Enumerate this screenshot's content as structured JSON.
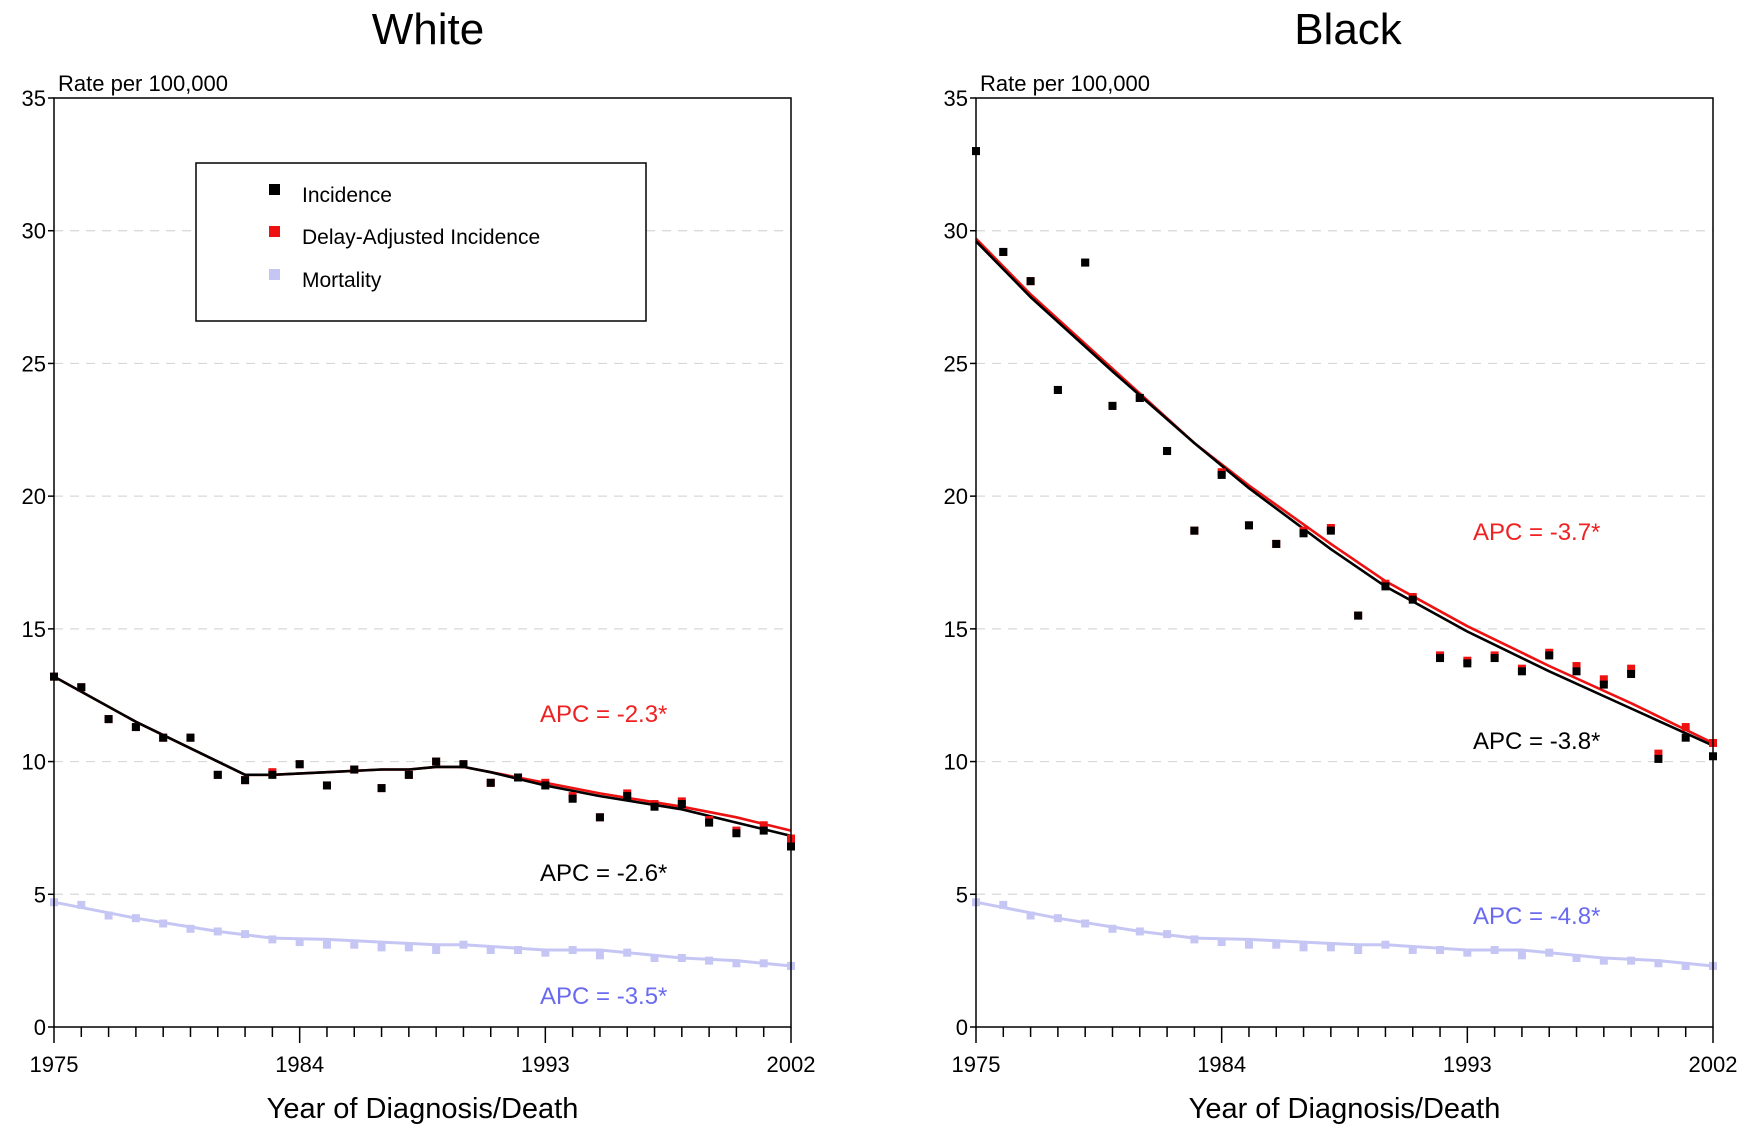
{
  "chart_data": [
    {
      "type": "scatter",
      "title": "White",
      "xlabel": "Year of Diagnosis/Death",
      "ylabel": "Rate per 100,000",
      "xlim": [
        1975,
        2002
      ],
      "ylim": [
        0,
        35
      ],
      "xticks": [
        1975,
        1984,
        1993,
        2002
      ],
      "yticks": [
        0,
        5,
        10,
        15,
        20,
        25,
        30,
        35
      ],
      "grid": "horizontal dashed",
      "legend": {
        "position": "top-center",
        "entries": [
          "Incidence",
          "Delay-Adjusted Incidence",
          "Mortality"
        ]
      },
      "x": [
        1975,
        1976,
        1977,
        1978,
        1979,
        1980,
        1981,
        1982,
        1983,
        1984,
        1985,
        1986,
        1987,
        1988,
        1989,
        1990,
        1991,
        1992,
        1993,
        1994,
        1995,
        1996,
        1997,
        1998,
        1999,
        2000,
        2001,
        2002
      ],
      "series": [
        {
          "name": "Incidence",
          "color": "#000000",
          "points": [
            13.2,
            12.8,
            11.6,
            11.3,
            10.9,
            10.9,
            9.5,
            9.3,
            9.5,
            9.9,
            9.1,
            9.7,
            9.0,
            9.5,
            10.0,
            9.9,
            9.2,
            9.4,
            9.1,
            8.6,
            7.9,
            8.7,
            8.3,
            8.4,
            7.7,
            7.3,
            7.4,
            6.8
          ],
          "trend": [
            [
              1975,
              13.2
            ],
            [
              1978,
              11.5
            ],
            [
              1981,
              10.0
            ],
            [
              1982,
              9.5
            ],
            [
              1983,
              9.5
            ],
            [
              1985,
              9.6
            ],
            [
              1987,
              9.7
            ],
            [
              1988,
              9.7
            ],
            [
              1989,
              9.8
            ],
            [
              1990,
              9.8
            ],
            [
              1991,
              9.6
            ],
            [
              1993,
              9.1
            ],
            [
              1995,
              8.7
            ],
            [
              1998,
              8.2
            ],
            [
              2000,
              7.7
            ],
            [
              2002,
              7.2
            ]
          ],
          "apc_label": "APC = -2.6*"
        },
        {
          "name": "Delay-Adjusted Incidence",
          "color": "#ee1111",
          "points": [
            13.2,
            12.8,
            11.6,
            11.3,
            10.9,
            10.9,
            9.5,
            9.3,
            9.6,
            9.9,
            9.1,
            9.7,
            9.0,
            9.5,
            10.0,
            9.9,
            9.2,
            9.4,
            9.2,
            8.7,
            7.9,
            8.8,
            8.4,
            8.5,
            7.8,
            7.4,
            7.6,
            7.1
          ],
          "trend": [
            [
              1975,
              13.2
            ],
            [
              1978,
              11.5
            ],
            [
              1980,
              10.5
            ],
            [
              1982,
              9.5
            ],
            [
              1983,
              9.5
            ],
            [
              1985,
              9.6
            ],
            [
              1987,
              9.7
            ],
            [
              1988,
              9.7
            ],
            [
              1989,
              9.8
            ],
            [
              1990,
              9.8
            ],
            [
              1991,
              9.6
            ],
            [
              1993,
              9.2
            ],
            [
              1995,
              8.8
            ],
            [
              1998,
              8.3
            ],
            [
              2000,
              7.9
            ],
            [
              2002,
              7.4
            ]
          ],
          "apc_label": "APC = -2.3*"
        },
        {
          "name": "Mortality",
          "color": "#c6c6f5",
          "points": [
            4.7,
            4.6,
            4.2,
            4.1,
            3.9,
            3.7,
            3.6,
            3.5,
            3.3,
            3.2,
            3.1,
            3.1,
            3.0,
            3.0,
            2.9,
            3.1,
            2.9,
            2.9,
            2.8,
            2.9,
            2.7,
            2.8,
            2.6,
            2.6,
            2.5,
            2.4,
            2.4,
            2.3
          ],
          "trend": [
            [
              1975,
              4.7
            ],
            [
              1978,
              4.1
            ],
            [
              1981,
              3.6
            ],
            [
              1983,
              3.35
            ],
            [
              1985,
              3.3
            ],
            [
              1987,
              3.2
            ],
            [
              1989,
              3.1
            ],
            [
              1990,
              3.1
            ],
            [
              1993,
              2.9
            ],
            [
              1995,
              2.9
            ],
            [
              1998,
              2.6
            ],
            [
              2000,
              2.5
            ],
            [
              2002,
              2.3
            ]
          ],
          "apc_label": "APC = -3.5*"
        }
      ]
    },
    {
      "type": "scatter",
      "title": "Black",
      "xlabel": "Year of Diagnosis/Death",
      "ylabel": "Rate per 100,000",
      "xlim": [
        1975,
        2002
      ],
      "ylim": [
        0,
        35
      ],
      "xticks": [
        1975,
        1984,
        1993,
        2002
      ],
      "yticks": [
        0,
        5,
        10,
        15,
        20,
        25,
        30,
        35
      ],
      "grid": "horizontal dashed",
      "x": [
        1975,
        1976,
        1977,
        1978,
        1979,
        1980,
        1981,
        1982,
        1983,
        1984,
        1985,
        1986,
        1987,
        1988,
        1989,
        1990,
        1991,
        1992,
        1993,
        1994,
        1995,
        1996,
        1997,
        1998,
        1999,
        2000,
        2001,
        2002
      ],
      "series": [
        {
          "name": "Incidence",
          "color": "#000000",
          "points": [
            33.0,
            29.2,
            28.1,
            24.0,
            28.8,
            23.4,
            23.7,
            21.7,
            18.7,
            20.8,
            18.9,
            18.2,
            18.6,
            18.7,
            15.5,
            16.6,
            16.1,
            13.9,
            13.7,
            13.9,
            13.4,
            14.0,
            13.4,
            12.9,
            13.3,
            10.1,
            10.9,
            10.2
          ],
          "trend": [
            [
              1975,
              29.6
            ],
            [
              1977,
              27.5
            ],
            [
              1980,
              24.7
            ],
            [
              1983,
              22.0
            ],
            [
              1985,
              20.3
            ],
            [
              1988,
              18.0
            ],
            [
              1990,
              16.6
            ],
            [
              1993,
              14.9
            ],
            [
              1996,
              13.4
            ],
            [
              1999,
              12.0
            ],
            [
              2002,
              10.6
            ]
          ],
          "apc_label": "APC = -3.8*"
        },
        {
          "name": "Delay-Adjusted Incidence",
          "color": "#ee1111",
          "points": [
            33.0,
            29.2,
            28.1,
            24.0,
            28.8,
            23.4,
            23.7,
            21.7,
            18.7,
            20.9,
            18.9,
            18.2,
            18.7,
            18.8,
            15.5,
            16.7,
            16.2,
            14.0,
            13.8,
            14.0,
            13.5,
            14.1,
            13.6,
            13.1,
            13.5,
            10.3,
            11.3,
            10.7
          ],
          "trend": [
            [
              1975,
              29.7
            ],
            [
              1977,
              27.6
            ],
            [
              1980,
              24.8
            ],
            [
              1983,
              22.0
            ],
            [
              1985,
              20.4
            ],
            [
              1988,
              18.2
            ],
            [
              1990,
              16.8
            ],
            [
              1993,
              15.1
            ],
            [
              1996,
              13.6
            ],
            [
              1999,
              12.2
            ],
            [
              2002,
              10.7
            ]
          ],
          "apc_label": "APC = -3.7*"
        },
        {
          "name": "Mortality",
          "color": "#c6c6f5",
          "points": [
            4.7,
            4.6,
            4.2,
            4.1,
            3.9,
            3.7,
            3.6,
            3.5,
            3.3,
            3.2,
            3.1,
            3.1,
            3.0,
            3.0,
            2.9,
            3.1,
            2.9,
            2.9,
            2.8,
            2.9,
            2.7,
            2.8,
            2.6,
            2.5,
            2.5,
            2.4,
            2.3,
            2.3
          ],
          "trend": [
            [
              1975,
              4.7
            ],
            [
              1978,
              4.1
            ],
            [
              1981,
              3.6
            ],
            [
              1983,
              3.35
            ],
            [
              1985,
              3.3
            ],
            [
              1987,
              3.2
            ],
            [
              1989,
              3.1
            ],
            [
              1990,
              3.1
            ],
            [
              1993,
              2.9
            ],
            [
              1995,
              2.9
            ],
            [
              1998,
              2.6
            ],
            [
              2000,
              2.5
            ],
            [
              2002,
              2.3
            ]
          ],
          "apc_label": "APC = -4.8*"
        }
      ]
    }
  ]
}
